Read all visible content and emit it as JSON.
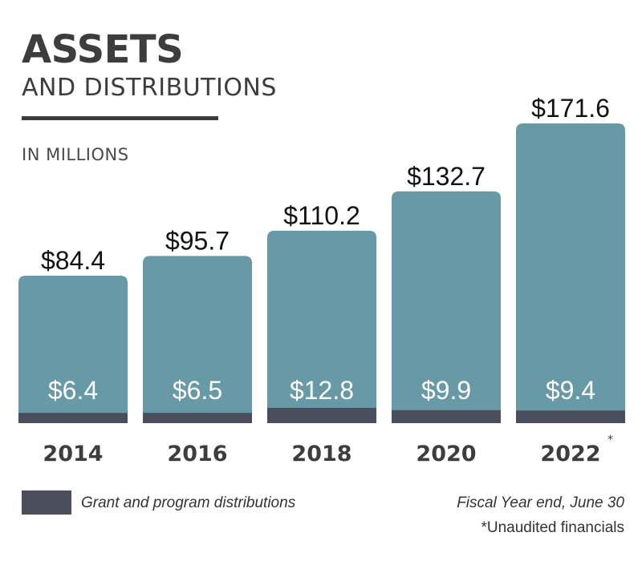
{
  "header": {
    "title": "ASSETS",
    "subtitle": "AND DISTRIBUTIONS",
    "units": "IN MILLIONS"
  },
  "legend": {
    "label": "Grant and program distributions",
    "swatch_color": "#4a4d5c"
  },
  "notes": {
    "fiscal_year": "Fiscal Year end, June 30",
    "unaudited": "*Unaudited financials"
  },
  "colors": {
    "assets": "#6799a6",
    "distributions": "#4a4d5c",
    "text_dark": "#3d3d3d"
  },
  "chart_data": {
    "type": "bar",
    "categories": [
      "2014",
      "2016",
      "2018",
      "2020",
      "2022"
    ],
    "category_markers": [
      "",
      "",
      "",
      "",
      "*"
    ],
    "series": [
      {
        "name": "",
        "values": [
          84.4,
          95.7,
          110.2,
          132.7,
          171.6
        ],
        "labels": [
          "$84.4",
          "$95.7",
          "$110.2",
          "$132.7",
          "$171.6"
        ]
      },
      {
        "name": "Grant and program distributions",
        "values": [
          6.4,
          6.5,
          12.8,
          9.9,
          9.4
        ],
        "labels": [
          "$6.4",
          "$6.5",
          "$12.8",
          "$9.9",
          "$9.4"
        ]
      }
    ],
    "title": "ASSETS",
    "subtitle": "AND DISTRIBUTIONS",
    "ylabel": "IN MILLIONS",
    "ylim": [
      0,
      171.6
    ],
    "grid": false,
    "legend_placement": "bottom-left"
  }
}
